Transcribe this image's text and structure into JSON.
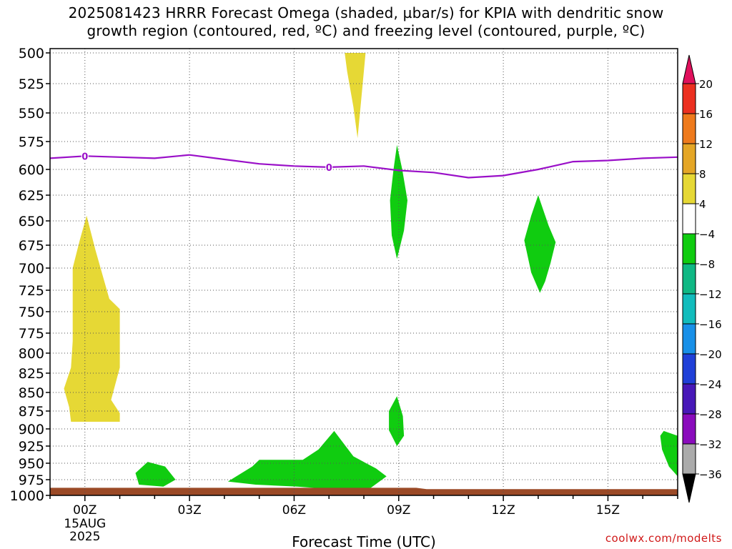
{
  "title": {
    "line1": "2025081423 HRRR Forecast Omega (shaded, µbar/s) for KPIA with dendritic snow",
    "line2": "growth region (contoured, red, ºC) and freezing level (contoured, purple, ºC)"
  },
  "watermark": "coolwx.com/modelts",
  "chart_data": {
    "type": "heatmap",
    "title": "2025081423 HRRR Forecast Omega (shaded, µbar/s) for KPIA with dendritic snow growth region (contoured, red, ºC) and freezing level (contoured, purple, ºC)",
    "xlabel": "Forecast Time (UTC)",
    "ylabel": "",
    "x_range_hours": [
      -1,
      17
    ],
    "x_ticks": [
      {
        "hour": 0,
        "label": "00Z",
        "sub1": "15AUG",
        "sub2": "2025"
      },
      {
        "hour": 3,
        "label": "03Z"
      },
      {
        "hour": 6,
        "label": "06Z"
      },
      {
        "hour": 9,
        "label": "09Z"
      },
      {
        "hour": 12,
        "label": "12Z"
      },
      {
        "hour": 15,
        "label": "15Z"
      }
    ],
    "y_axis": "pressure (mb), reversed",
    "y_range": [
      500,
      1000
    ],
    "y_ticks": [
      500,
      525,
      550,
      575,
      600,
      625,
      650,
      675,
      700,
      725,
      750,
      775,
      800,
      825,
      850,
      875,
      900,
      925,
      950,
      975,
      1000
    ],
    "grid": true,
    "colorbar": {
      "labels": [
        "20",
        "16",
        "12",
        "8",
        "4",
        "−4",
        "−8",
        "−12",
        "−16",
        "−20",
        "−24",
        "−28",
        "−32",
        "−36"
      ],
      "colors": [
        "#e0105c",
        "#ec3020",
        "#ee7a1c",
        "#e4a626",
        "#e6d835",
        "#ffffff",
        "#10cc10",
        "#10b884",
        "#12bcbc",
        "#1890e8",
        "#2040d8",
        "#4818b8",
        "#8a0cbc",
        "#ababab",
        "#000000"
      ]
    },
    "omega_regions": [
      {
        "category": "4 to 8",
        "color": "#e6d835",
        "points": [
          [
            7.45,
            500
          ],
          [
            8.05,
            500
          ],
          [
            7.92,
            540
          ],
          [
            7.82,
            572
          ],
          [
            7.7,
            545
          ],
          [
            7.52,
            515
          ]
        ]
      },
      {
        "category": "4 to 8",
        "color": "#e6d835",
        "points": [
          [
            0.05,
            645
          ],
          [
            0.3,
            680
          ],
          [
            0.7,
            735
          ],
          [
            1.0,
            747
          ],
          [
            1.0,
            818
          ],
          [
            0.75,
            860
          ],
          [
            1.0,
            878
          ],
          [
            1.0,
            890
          ],
          [
            -0.4,
            890
          ],
          [
            -0.45,
            870
          ],
          [
            -0.6,
            845
          ],
          [
            -0.4,
            818
          ],
          [
            -0.35,
            785
          ],
          [
            -0.35,
            700
          ],
          [
            -0.15,
            670
          ]
        ]
      },
      {
        "category": "-8 to -4",
        "color": "#10cc10",
        "points": [
          [
            8.95,
            578
          ],
          [
            9.1,
            600
          ],
          [
            9.25,
            630
          ],
          [
            9.15,
            660
          ],
          [
            8.95,
            690
          ],
          [
            8.8,
            665
          ],
          [
            8.75,
            630
          ],
          [
            8.85,
            600
          ]
        ]
      },
      {
        "category": "-8 to -4",
        "color": "#10cc10",
        "points": [
          [
            13.0,
            625
          ],
          [
            13.3,
            655
          ],
          [
            13.5,
            672
          ],
          [
            13.35,
            695
          ],
          [
            13.2,
            715
          ],
          [
            13.05,
            728
          ],
          [
            12.8,
            705
          ],
          [
            12.6,
            670
          ],
          [
            12.8,
            645
          ]
        ]
      },
      {
        "category": "-8 to -4",
        "color": "#10cc10",
        "points": [
          [
            8.95,
            855
          ],
          [
            9.12,
            882
          ],
          [
            9.15,
            910
          ],
          [
            8.95,
            925
          ],
          [
            8.72,
            902
          ],
          [
            8.72,
            875
          ]
        ]
      },
      {
        "category": "-8 to -4",
        "color": "#10cc10",
        "points": [
          [
            1.45,
            965
          ],
          [
            1.8,
            948
          ],
          [
            2.3,
            955
          ],
          [
            2.6,
            975
          ],
          [
            2.25,
            986
          ],
          [
            1.55,
            983
          ]
        ]
      },
      {
        "category": "-8 to -4",
        "color": "#10cc10",
        "points": [
          [
            4.1,
            978
          ],
          [
            4.8,
            955
          ],
          [
            5.0,
            945
          ],
          [
            6.25,
            945
          ],
          [
            6.7,
            930
          ],
          [
            7.15,
            903
          ],
          [
            7.7,
            940
          ],
          [
            8.35,
            958
          ],
          [
            8.65,
            970
          ],
          [
            8.2,
            988
          ],
          [
            7.05,
            990
          ],
          [
            6.1,
            986
          ],
          [
            4.9,
            983
          ]
        ]
      },
      {
        "category": "-8 to -4",
        "color": "#10cc10",
        "points": [
          [
            17.0,
            910
          ],
          [
            16.6,
            903
          ],
          [
            16.5,
            910
          ],
          [
            16.55,
            930
          ],
          [
            16.75,
            955
          ],
          [
            17.0,
            970
          ]
        ]
      }
    ],
    "surface_fill": {
      "color": "#9b4a27",
      "points": [
        [
          -1,
          1000
        ],
        [
          17,
          1000
        ],
        [
          17,
          990
        ],
        [
          9.8,
          990
        ],
        [
          9.5,
          988
        ],
        [
          -1,
          988
        ]
      ]
    },
    "freezing_level": {
      "color": "#9a10c8",
      "label": "0",
      "label_hours": [
        0.0,
        7.0
      ],
      "points": [
        [
          -1,
          590
        ],
        [
          0,
          588
        ],
        [
          1,
          589
        ],
        [
          2,
          590
        ],
        [
          3,
          587
        ],
        [
          4,
          591
        ],
        [
          5,
          595
        ],
        [
          6,
          597
        ],
        [
          7,
          598
        ],
        [
          8,
          597
        ],
        [
          9,
          601
        ],
        [
          10,
          603
        ],
        [
          11,
          608
        ],
        [
          12,
          606
        ],
        [
          13,
          600
        ],
        [
          14,
          593
        ],
        [
          15,
          592
        ],
        [
          16,
          590
        ],
        [
          17,
          589
        ]
      ]
    }
  }
}
